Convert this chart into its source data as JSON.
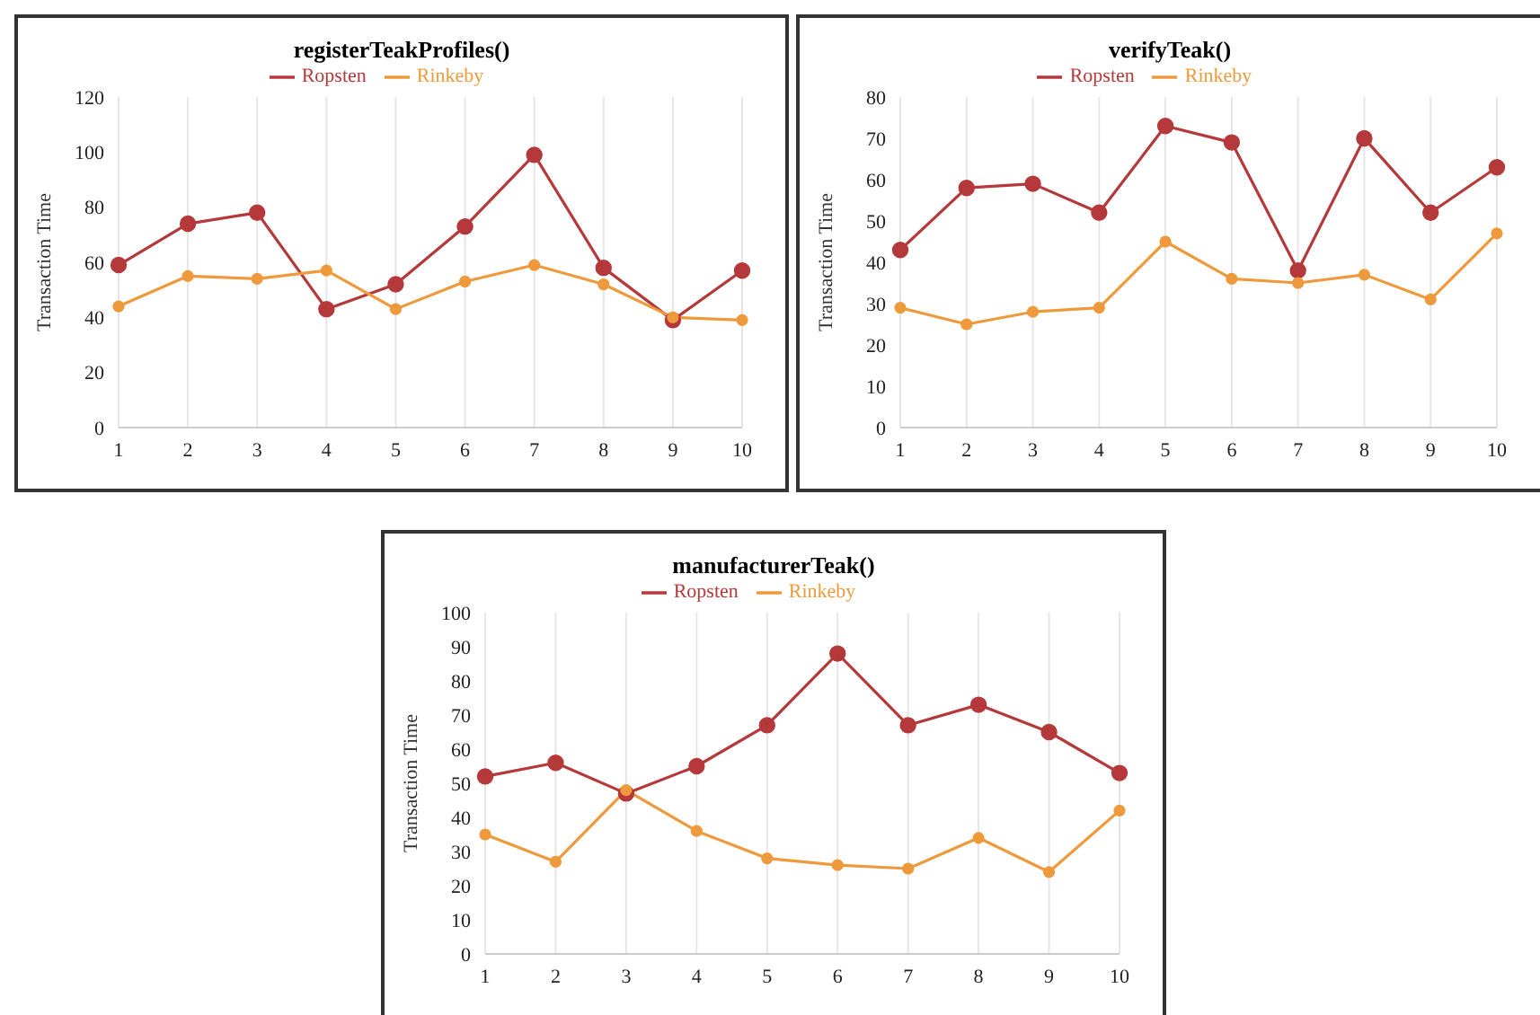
{
  "chart_data": [
    {
      "type": "line",
      "title": "registerTeakProfiles()",
      "ylabel": "Transaction Time",
      "categories": [
        "1",
        "2",
        "3",
        "4",
        "5",
        "6",
        "7",
        "8",
        "9",
        "10"
      ],
      "series": [
        {
          "name": "Ropsten",
          "color": "#b5393a",
          "values": [
            59,
            74,
            78,
            43,
            52,
            73,
            99,
            58,
            39,
            57
          ]
        },
        {
          "name": "Rinkeby",
          "color": "#ee9a3c",
          "values": [
            44,
            55,
            54,
            57,
            43,
            53,
            59,
            52,
            40,
            39
          ]
        }
      ],
      "ylim": [
        0,
        120
      ],
      "yticks": [
        0,
        20,
        40,
        60,
        80,
        100,
        120
      ],
      "grid": "x",
      "legend": "top",
      "marker": "circle",
      "line_style": "solid"
    },
    {
      "type": "line",
      "title": "verifyTeak()",
      "ylabel": "Transaction Time",
      "categories": [
        "1",
        "2",
        "3",
        "4",
        "5",
        "6",
        "7",
        "8",
        "9",
        "10"
      ],
      "series": [
        {
          "name": "Ropsten",
          "color": "#b5393a",
          "values": [
            43,
            58,
            59,
            52,
            73,
            69,
            38,
            70,
            52,
            63
          ]
        },
        {
          "name": "Rinkeby",
          "color": "#ee9a3c",
          "values": [
            29,
            25,
            28,
            29,
            45,
            36,
            35,
            37,
            31,
            47
          ]
        }
      ],
      "ylim": [
        0,
        80
      ],
      "yticks": [
        0,
        10,
        20,
        30,
        40,
        50,
        60,
        70,
        80
      ],
      "grid": "x",
      "legend": "top",
      "marker": "circle",
      "line_style": "solid"
    },
    {
      "type": "line",
      "title": "manufacturerTeak()",
      "ylabel": "Transaction Time",
      "categories": [
        "1",
        "2",
        "3",
        "4",
        "5",
        "6",
        "7",
        "8",
        "9",
        "10"
      ],
      "series": [
        {
          "name": "Ropsten",
          "color": "#b5393a",
          "values": [
            52,
            56,
            47,
            55,
            67,
            88,
            67,
            73,
            65,
            53
          ]
        },
        {
          "name": "Rinkeby",
          "color": "#ee9a3c",
          "values": [
            35,
            27,
            48,
            36,
            28,
            26,
            25,
            34,
            24,
            42
          ]
        }
      ],
      "ylim": [
        0,
        100
      ],
      "yticks": [
        0,
        10,
        20,
        30,
        40,
        50,
        60,
        70,
        80,
        90,
        100
      ],
      "grid": "x",
      "legend": "top",
      "marker": "circle",
      "line_style": "solid"
    }
  ]
}
